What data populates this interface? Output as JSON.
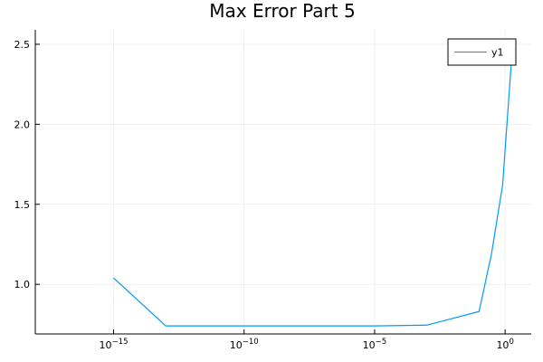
{
  "chart_data": {
    "type": "line",
    "title": "Max Error Part 5",
    "xlabel": "",
    "ylabel": "",
    "x_scale": "log10",
    "xlim": [
      1e-18,
      10
    ],
    "ylim": [
      0.69,
      2.59
    ],
    "x_ticks": [
      {
        "value": 1e-15,
        "base": "10",
        "exp": "−15"
      },
      {
        "value": 1e-10,
        "base": "10",
        "exp": "−10"
      },
      {
        "value": 1e-05,
        "base": "10",
        "exp": "−5"
      },
      {
        "value": 1,
        "base": "10",
        "exp": "0"
      }
    ],
    "y_ticks": [
      {
        "value": 1.0,
        "label": "1.0"
      },
      {
        "value": 1.5,
        "label": "1.5"
      },
      {
        "value": 2.0,
        "label": "2.0"
      },
      {
        "value": 2.5,
        "label": "2.5"
      }
    ],
    "grid": true,
    "legend": {
      "position": "top-right"
    },
    "series": [
      {
        "name": "y1",
        "color": "#009AFA",
        "x": [
          1e-15,
          1e-13,
          1e-11,
          1e-09,
          1e-07,
          1e-05,
          0.001,
          0.1,
          0.3,
          0.8,
          2
        ],
        "y": [
          1.04,
          0.74,
          0.74,
          0.74,
          0.74,
          0.74,
          0.745,
          0.83,
          1.19,
          1.62,
          2.53
        ]
      }
    ]
  }
}
